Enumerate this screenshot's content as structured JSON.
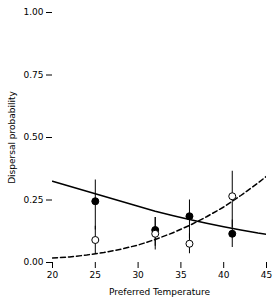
{
  "chart_data": {
    "type": "scatter",
    "xlabel": "Preferred Temperature",
    "ylabel": "Dispersal probability",
    "xlim": [
      20,
      45
    ],
    "ylim": [
      0.0,
      1.0
    ],
    "xticks": [
      20,
      25,
      30,
      35,
      40,
      45
    ],
    "yticks": [
      {
        "value": 0,
        "label": "0.00"
      },
      0.25,
      {
        "value": 0.5,
        "label": "0.50"
      },
      0.75,
      {
        "value": 1,
        "label": "1.00"
      }
    ],
    "grid": false,
    "series": [
      {
        "type": "line",
        "line_style": "solid",
        "color": "#000000",
        "x": [
          20,
          21,
          22,
          24,
          26,
          28,
          30,
          32,
          34,
          36,
          38,
          40,
          42,
          44,
          45
        ],
        "values": [
          0.325,
          0.315,
          0.305,
          0.285,
          0.265,
          0.245,
          0.225,
          0.205,
          0.188,
          0.172,
          0.157,
          0.143,
          0.13,
          0.118,
          0.113
        ]
      },
      {
        "type": "line",
        "line_style": "dashed",
        "color": "#000000",
        "x": [
          20,
          22,
          24,
          26,
          28,
          30,
          32,
          34,
          36,
          38,
          40,
          42,
          44,
          45
        ],
        "values": [
          0.018,
          0.022,
          0.03,
          0.04,
          0.053,
          0.07,
          0.092,
          0.118,
          0.148,
          0.183,
          0.222,
          0.268,
          0.318,
          0.345
        ]
      },
      {
        "type": "scatter",
        "marker": "filled circle",
        "color": "#000000",
        "x": [
          25,
          32,
          36,
          41
        ],
        "values": [
          0.245,
          0.13,
          0.185,
          0.115
        ],
        "yerr_low": [
          0.115,
          0.065,
          0.09,
          0.055
        ],
        "yerr_high": [
          0.085,
          0.05,
          0.065,
          0.055
        ]
      },
      {
        "type": "scatter",
        "marker": "open circle",
        "color": "#000000",
        "x": [
          25,
          32,
          36,
          41
        ],
        "values": [
          0.09,
          0.115,
          0.075,
          0.265
        ],
        "yerr_low": [
          0.055,
          0.065,
          0.04,
          0.125
        ],
        "yerr_high": [
          0.055,
          0.065,
          0.04,
          0.1
        ]
      }
    ]
  }
}
